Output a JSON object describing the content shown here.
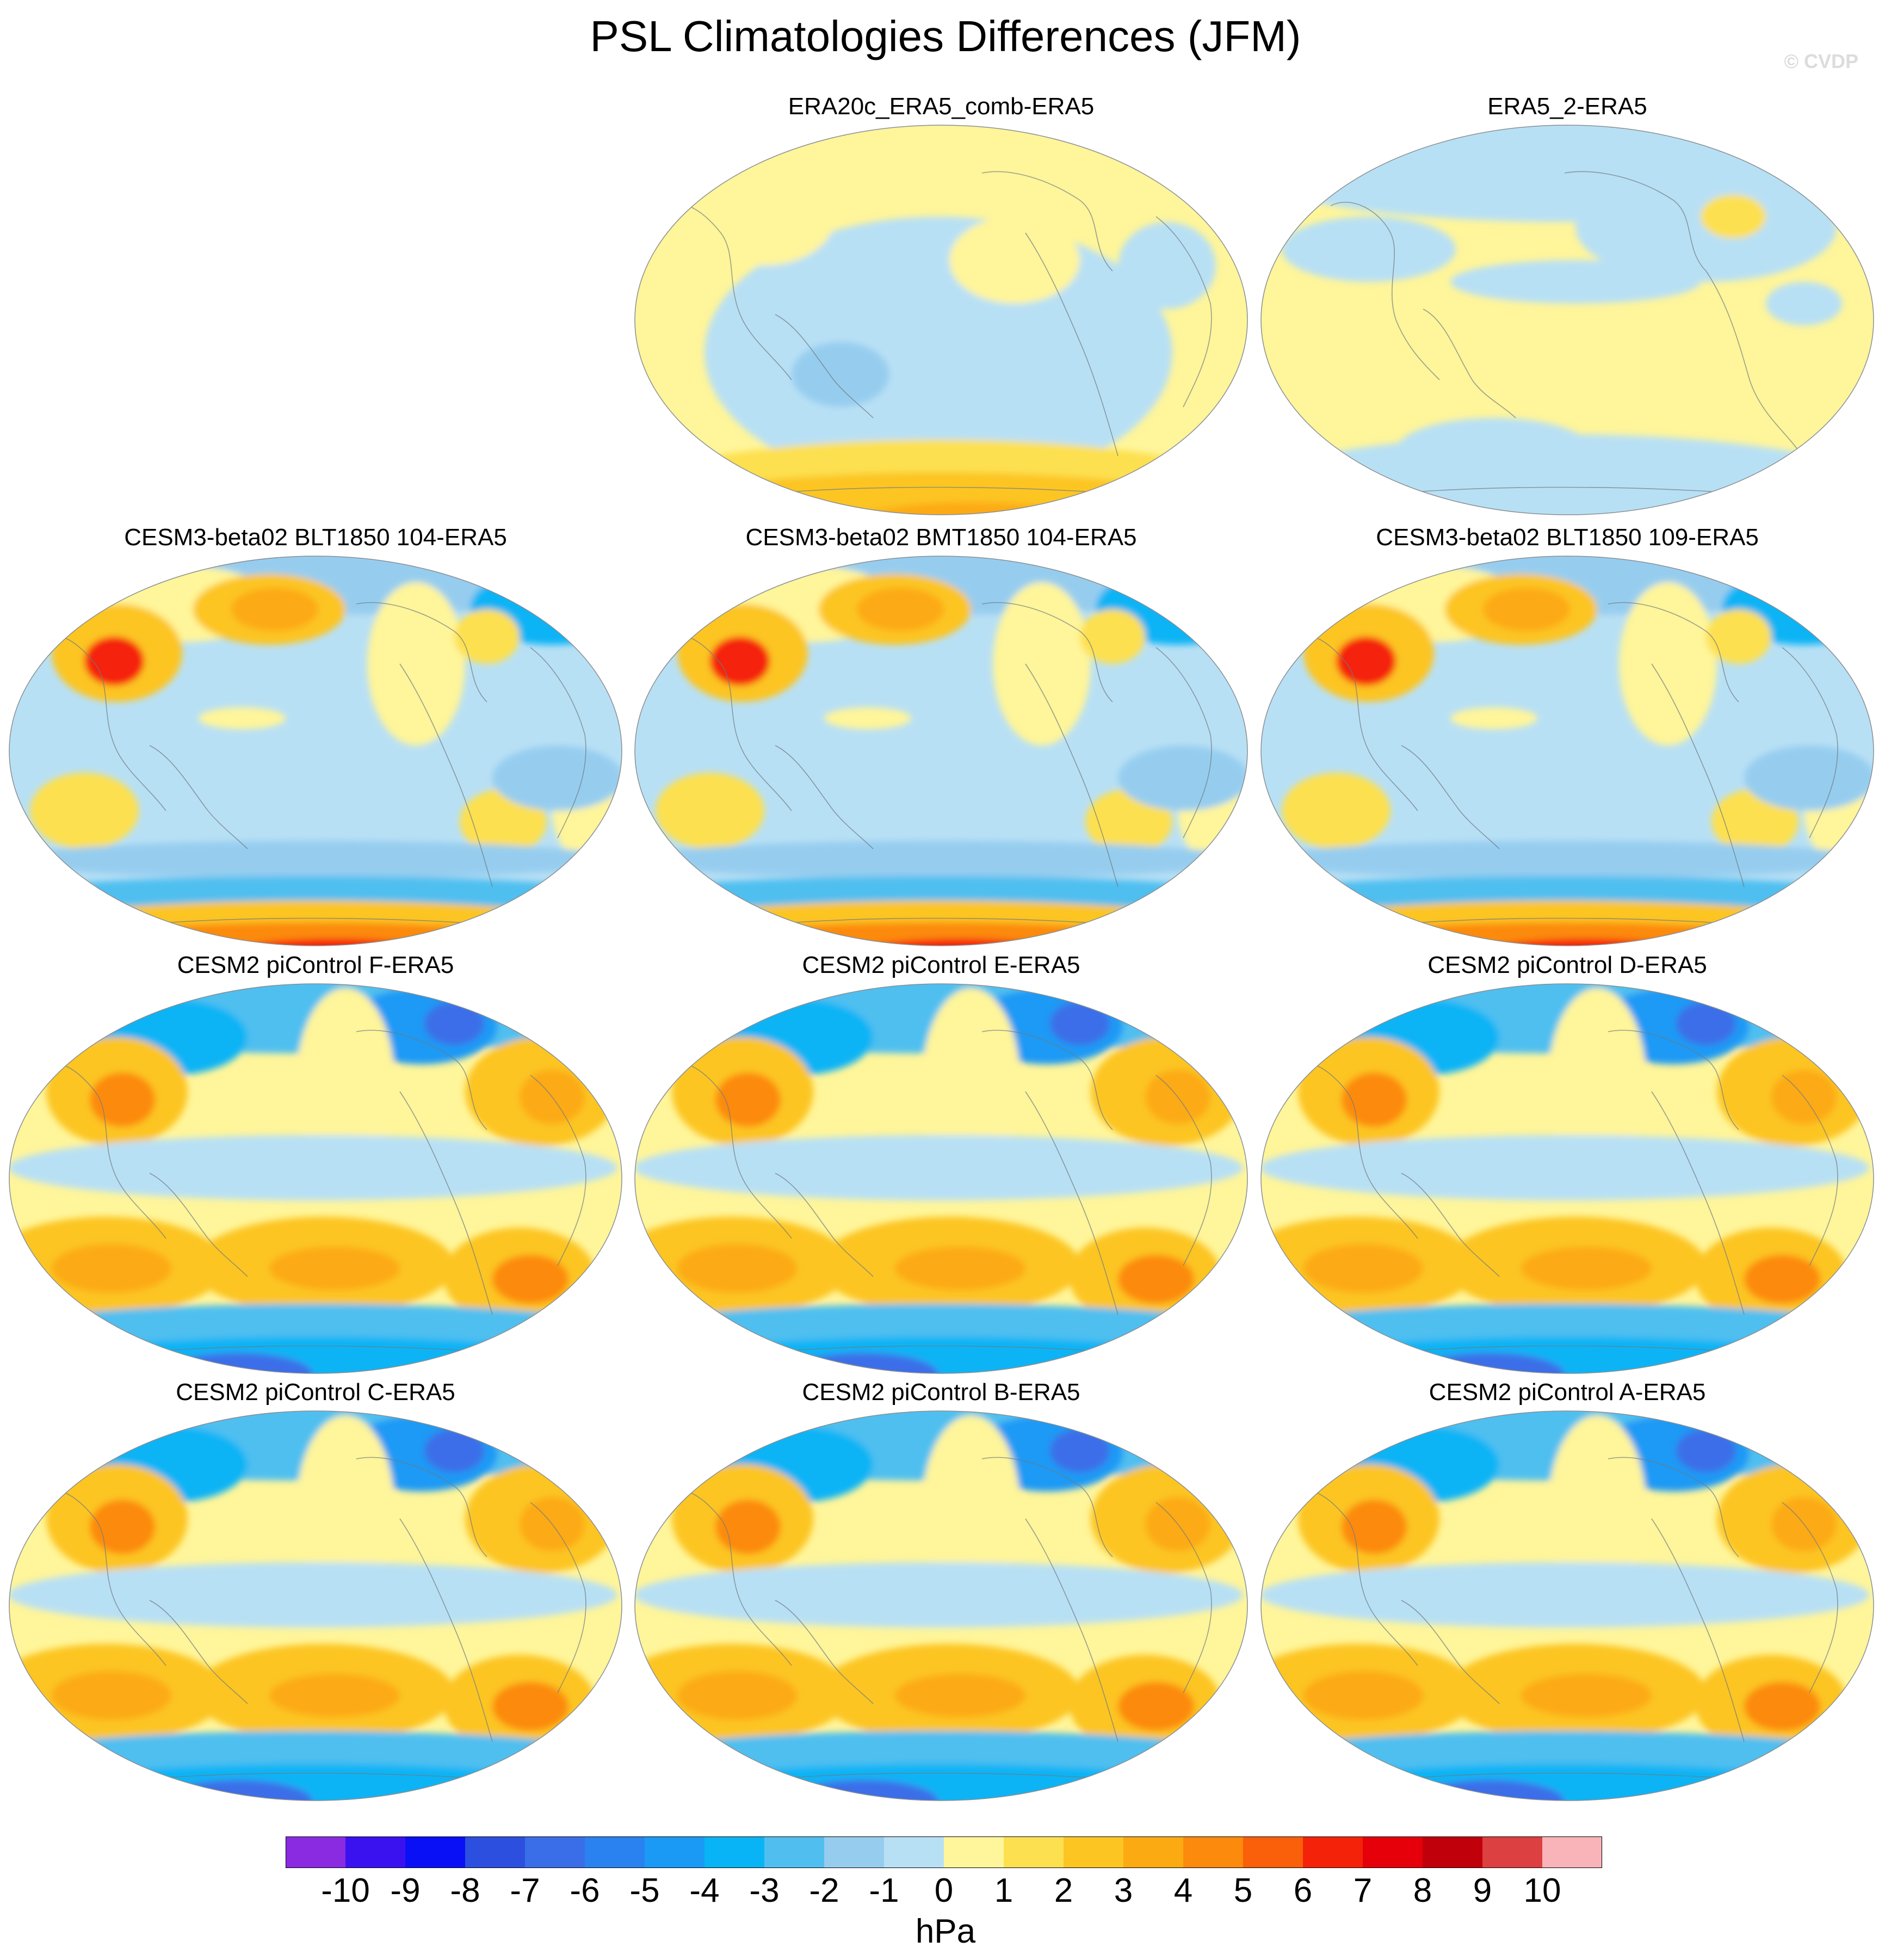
{
  "title": "PSL Climatologies Differences (JFM)",
  "credit": "© CVDP",
  "units": "hPa",
  "colorbar": {
    "labels": [
      "-10",
      "-9",
      "-8",
      "-7",
      "-6",
      "-5",
      "-4",
      "-3",
      "-2",
      "-1",
      "0",
      "1",
      "2",
      "3",
      "4",
      "5",
      "6",
      "7",
      "8",
      "9",
      "10"
    ],
    "colors": [
      "#8a2be2",
      "#3a12f0",
      "#0a10f5",
      "#2d4fe0",
      "#3a6ee8",
      "#2a82f0",
      "#1a9af5",
      "#08b4f5",
      "#50bff0",
      "#96cdef",
      "#b8e0f5",
      "#fff59a",
      "#fde050",
      "#fcc522",
      "#fcaa12",
      "#fc8a0c",
      "#fa5f0a",
      "#f5220a",
      "#e5000a",
      "#c0000a",
      "#dc4040",
      "#f8b4b8"
    ]
  },
  "panels": [
    {
      "title": "ERA20c_ERA5_comb-ERA5",
      "pattern": "era20c"
    },
    {
      "title": "ERA5_2-ERA5",
      "pattern": "era5_2"
    },
    {
      "title": "CESM3-beta02 BLT1850 104-ERA5",
      "pattern": "cesm3"
    },
    {
      "title": "CESM3-beta02 BMT1850 104-ERA5",
      "pattern": "cesm3"
    },
    {
      "title": "CESM3-beta02 BLT1850 109-ERA5",
      "pattern": "cesm3"
    },
    {
      "title": "CESM2 piControl F-ERA5",
      "pattern": "cesm2"
    },
    {
      "title": "CESM2 piControl E-ERA5",
      "pattern": "cesm2"
    },
    {
      "title": "CESM2 piControl D-ERA5",
      "pattern": "cesm2"
    },
    {
      "title": "CESM2 piControl C-ERA5",
      "pattern": "cesm2"
    },
    {
      "title": "CESM2 piControl B-ERA5",
      "pattern": "cesm2"
    },
    {
      "title": "CESM2 piControl A-ERA5",
      "pattern": "cesm2"
    }
  ]
}
